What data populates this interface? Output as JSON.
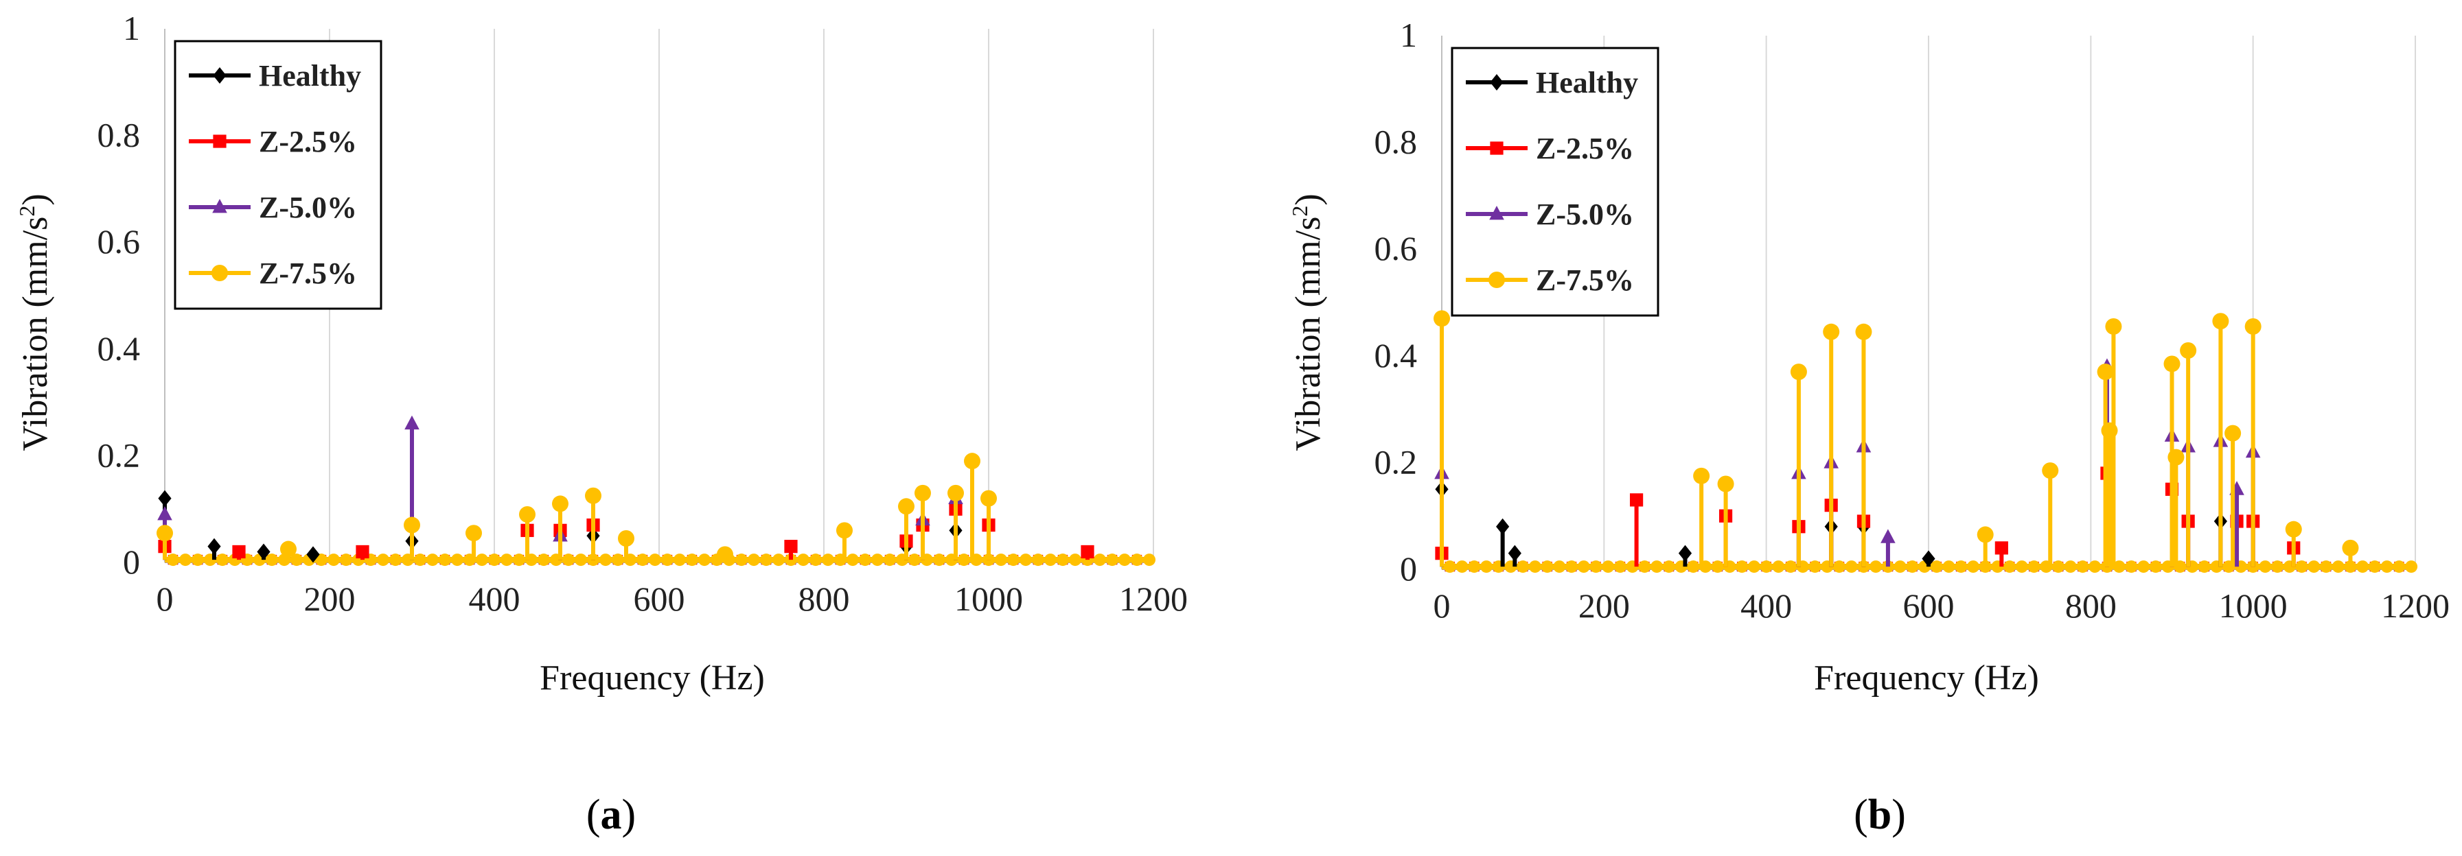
{
  "chart_data": [
    {
      "id": "a",
      "type": "line",
      "subplot_label": "a",
      "xlabel": "Frequency (Hz)",
      "ylabel": "Vibration (mm/s²)",
      "ylabel_main": "Vibration (mm/s",
      "ylabel_sup": "2",
      "ylabel_close": ")",
      "xlim": [
        0,
        1200
      ],
      "ylim": [
        0,
        1
      ],
      "xticks": [
        0,
        200,
        400,
        600,
        800,
        1000,
        1200
      ],
      "yticks": [
        0,
        0.2,
        0.4,
        0.6,
        0.8,
        1
      ],
      "ytick_labels": [
        "0",
        "0.2",
        "0.4",
        "0.6",
        "0.8",
        "1"
      ],
      "grid": "vertical",
      "legend_position": "top-left",
      "series": [
        {
          "name": "Healthy",
          "color": "#000000",
          "marker": "diamond",
          "x": [
            0,
            60,
            120,
            180,
            300,
            480,
            520,
            900,
            960
          ],
          "y": [
            0.12,
            0.03,
            0.02,
            0.015,
            0.04,
            0.05,
            0.05,
            0.03,
            0.06
          ]
        },
        {
          "name": "Z-2.5%",
          "color": "#ff0000",
          "marker": "square",
          "x": [
            0,
            90,
            240,
            440,
            480,
            520,
            760,
            900,
            920,
            960,
            1000,
            1120
          ],
          "y": [
            0.03,
            0.02,
            0.02,
            0.06,
            0.06,
            0.07,
            0.03,
            0.04,
            0.07,
            0.1,
            0.07,
            0.02
          ]
        },
        {
          "name": "Z-5.0%",
          "color": "#7030a0",
          "marker": "triangle",
          "x": [
            0,
            300,
            480,
            920,
            960
          ],
          "y": [
            0.09,
            0.26,
            0.05,
            0.08,
            0.12
          ]
        },
        {
          "name": "Z-7.5%",
          "color": "#ffc000",
          "marker": "circle",
          "x": [
            0,
            150,
            300,
            375,
            440,
            480,
            520,
            560,
            680,
            825,
            900,
            920,
            960,
            980,
            1000
          ],
          "y": [
            0.055,
            0.025,
            0.07,
            0.055,
            0.09,
            0.11,
            0.125,
            0.045,
            0.015,
            0.06,
            0.105,
            0.13,
            0.13,
            0.19,
            0.12
          ]
        }
      ]
    },
    {
      "id": "b",
      "type": "line",
      "subplot_label": "b",
      "xlabel": "Frequency (Hz)",
      "ylabel": "Vibration (mm/s²)",
      "ylabel_main": "Vibration (mm/s",
      "ylabel_sup": "2",
      "ylabel_close": ")",
      "xlim": [
        0,
        1200
      ],
      "ylim": [
        0,
        1
      ],
      "xticks": [
        0,
        200,
        400,
        600,
        800,
        1000,
        1200
      ],
      "yticks": [
        0,
        0.2,
        0.4,
        0.6,
        0.8,
        1
      ],
      "ytick_labels": [
        "0",
        "0.2",
        "0.4",
        "0.6",
        "0.8",
        "1"
      ],
      "grid": "vertical",
      "legend_position": "top-left",
      "series": [
        {
          "name": "Healthy",
          "color": "#000000",
          "marker": "diamond",
          "x": [
            0,
            75,
            90,
            300,
            440,
            480,
            520,
            600,
            960
          ],
          "y": [
            0.15,
            0.08,
            0.03,
            0.03,
            0.08,
            0.08,
            0.08,
            0.02,
            0.09
          ]
        },
        {
          "name": "Z-2.5%",
          "color": "#ff0000",
          "marker": "square",
          "x": [
            0,
            240,
            350,
            440,
            480,
            520,
            690,
            820,
            900,
            920,
            980,
            1000,
            1050
          ],
          "y": [
            0.03,
            0.13,
            0.1,
            0.08,
            0.12,
            0.09,
            0.04,
            0.18,
            0.15,
            0.09,
            0.09,
            0.09,
            0.04
          ]
        },
        {
          "name": "Z-5.0%",
          "color": "#7030a0",
          "marker": "triangle",
          "x": [
            0,
            440,
            480,
            520,
            550,
            820,
            900,
            920,
            960,
            980,
            1000
          ],
          "y": [
            0.18,
            0.18,
            0.2,
            0.23,
            0.06,
            0.38,
            0.25,
            0.23,
            0.24,
            0.15,
            0.22
          ]
        },
        {
          "name": "Z-7.5%",
          "color": "#ffc000",
          "marker": "circle",
          "x": [
            0,
            320,
            350,
            440,
            480,
            520,
            670,
            750,
            818,
            823,
            828,
            900,
            905,
            920,
            960,
            975,
            1000,
            1050,
            1120
          ],
          "y": [
            0.47,
            0.175,
            0.16,
            0.37,
            0.445,
            0.445,
            0.065,
            0.185,
            0.37,
            0.26,
            0.455,
            0.385,
            0.21,
            0.41,
            0.465,
            0.255,
            0.455,
            0.075,
            0.04
          ]
        }
      ]
    }
  ]
}
